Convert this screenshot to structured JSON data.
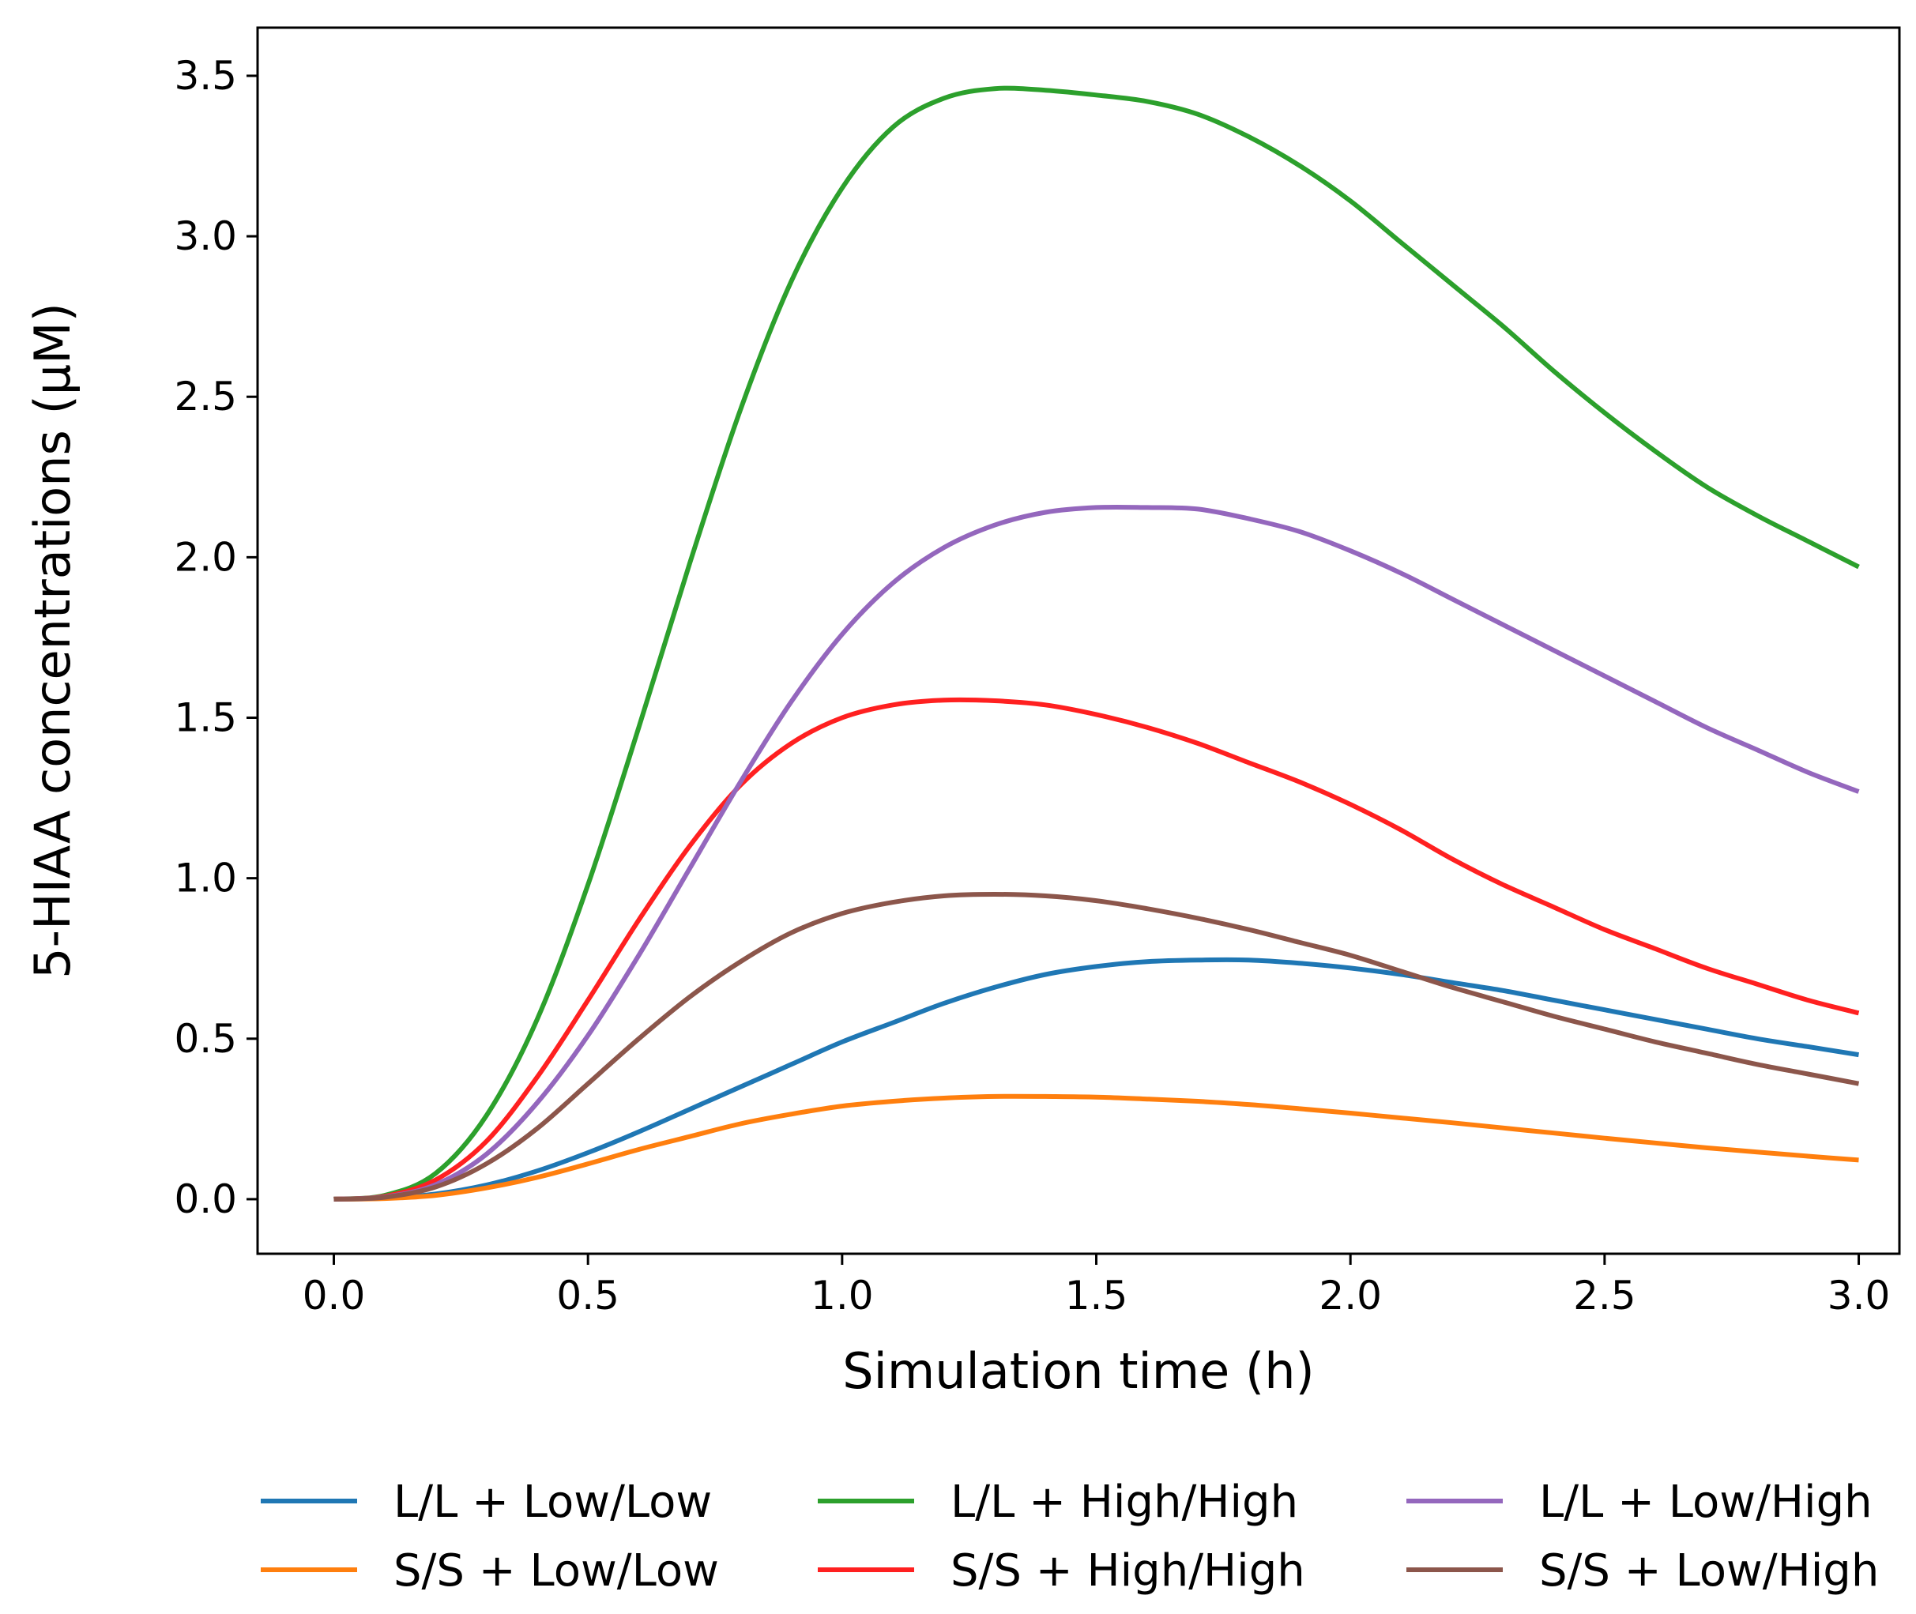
{
  "chart_data": {
    "type": "line",
    "title": "",
    "xlabel": "Simulation time (h)",
    "ylabel": "5-HIAA concentrations (μM)",
    "xlim": [
      -0.15,
      3.08
    ],
    "ylim": [
      -0.17,
      3.65
    ],
    "grid": false,
    "legend_position": "bottom",
    "xticks": [
      "0.0",
      "0.5",
      "1.0",
      "1.5",
      "2.0",
      "2.5",
      "3.0"
    ],
    "yticks": [
      "0.0",
      "0.5",
      "1.0",
      "1.5",
      "2.0",
      "2.5",
      "3.0",
      "3.5"
    ],
    "x": [
      0.0,
      0.1,
      0.2,
      0.3,
      0.4,
      0.5,
      0.6,
      0.7,
      0.8,
      0.9,
      1.0,
      1.1,
      1.2,
      1.3,
      1.4,
      1.5,
      1.6,
      1.7,
      1.8,
      1.9,
      2.0,
      2.1,
      2.2,
      2.3,
      2.4,
      2.5,
      2.6,
      2.7,
      2.8,
      2.9,
      3.0
    ],
    "series": [
      {
        "name": "L/L + Low/Low",
        "color": "#1f77b4",
        "values": [
          0.0,
          0.003,
          0.016,
          0.044,
          0.088,
          0.145,
          0.21,
          0.28,
          0.35,
          0.42,
          0.49,
          0.55,
          0.61,
          0.66,
          0.7,
          0.725,
          0.74,
          0.745,
          0.745,
          0.735,
          0.72,
          0.7,
          0.675,
          0.65,
          0.62,
          0.59,
          0.56,
          0.53,
          0.5,
          0.475,
          0.45
        ]
      },
      {
        "name": "S/S + Low/Low",
        "color": "#ff7f0e",
        "values": [
          0.0,
          0.002,
          0.012,
          0.035,
          0.068,
          0.11,
          0.155,
          0.195,
          0.235,
          0.265,
          0.29,
          0.305,
          0.315,
          0.32,
          0.32,
          0.318,
          0.312,
          0.305,
          0.295,
          0.282,
          0.268,
          0.253,
          0.238,
          0.222,
          0.206,
          0.19,
          0.175,
          0.16,
          0.147,
          0.134,
          0.122
        ]
      },
      {
        "name": "L/L + High/High",
        "color": "#2ca02c",
        "values": [
          0.0,
          0.012,
          0.08,
          0.26,
          0.56,
          0.98,
          1.47,
          1.98,
          2.46,
          2.86,
          3.15,
          3.34,
          3.43,
          3.46,
          3.455,
          3.44,
          3.42,
          3.38,
          3.31,
          3.22,
          3.11,
          2.98,
          2.85,
          2.72,
          2.58,
          2.45,
          2.33,
          2.22,
          2.13,
          2.05,
          1.97
        ]
      },
      {
        "name": "S/S + High/High",
        "color": "#ff2020",
        "values": [
          0.0,
          0.009,
          0.06,
          0.18,
          0.38,
          0.62,
          0.87,
          1.1,
          1.29,
          1.42,
          1.5,
          1.54,
          1.555,
          1.553,
          1.54,
          1.51,
          1.47,
          1.42,
          1.36,
          1.3,
          1.23,
          1.15,
          1.06,
          0.98,
          0.91,
          0.84,
          0.78,
          0.72,
          0.67,
          0.62,
          0.58
        ]
      },
      {
        "name": "L/L + Low/High",
        "color": "#9467bd",
        "values": [
          0.0,
          0.007,
          0.045,
          0.14,
          0.3,
          0.51,
          0.76,
          1.03,
          1.3,
          1.55,
          1.76,
          1.92,
          2.03,
          2.1,
          2.14,
          2.155,
          2.155,
          2.15,
          2.12,
          2.08,
          2.02,
          1.95,
          1.87,
          1.79,
          1.71,
          1.63,
          1.55,
          1.47,
          1.4,
          1.33,
          1.27
        ]
      },
      {
        "name": "S/S + Low/High",
        "color": "#8c564b",
        "values": [
          0.0,
          0.006,
          0.038,
          0.11,
          0.22,
          0.36,
          0.5,
          0.63,
          0.74,
          0.83,
          0.89,
          0.925,
          0.945,
          0.95,
          0.945,
          0.93,
          0.905,
          0.875,
          0.84,
          0.8,
          0.76,
          0.71,
          0.66,
          0.615,
          0.57,
          0.53,
          0.49,
          0.455,
          0.42,
          0.39,
          0.36
        ]
      }
    ]
  }
}
